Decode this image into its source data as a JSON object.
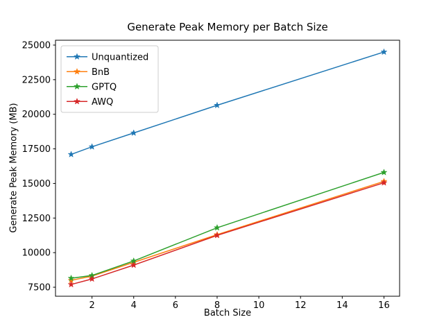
{
  "chart_data": {
    "type": "line",
    "title": "Generate Peak Memory per Batch Size",
    "xlabel": "Batch Size",
    "ylabel": "Generate Peak Memory (MB)",
    "x": [
      1,
      2,
      4,
      8,
      16
    ],
    "series": [
      {
        "name": "Unquantized",
        "color": "#1f77b4",
        "values": [
          17100,
          17650,
          18650,
          20650,
          24500
        ]
      },
      {
        "name": "BnB",
        "color": "#ff7f0e",
        "values": [
          8000,
          8300,
          9300,
          11300,
          15150
        ]
      },
      {
        "name": "GPTQ",
        "color": "#2ca02c",
        "values": [
          8150,
          8350,
          9400,
          11800,
          15800
        ]
      },
      {
        "name": "AWQ",
        "color": "#d62728",
        "values": [
          7700,
          8100,
          9100,
          11250,
          15050
        ]
      }
    ],
    "xlim": [
      0.25,
      16.75
    ],
    "ylim": [
      6850,
      25350
    ],
    "xticks": [
      2,
      4,
      6,
      8,
      10,
      12,
      14,
      16
    ],
    "yticks": [
      7500,
      10000,
      12500,
      15000,
      17500,
      20000,
      22500,
      25000
    ],
    "grid": false,
    "legend_position": "upper left",
    "marker": "star",
    "axis_color": "#000000",
    "legend_border_color": "#cccccc",
    "background_color": "#ffffff"
  }
}
